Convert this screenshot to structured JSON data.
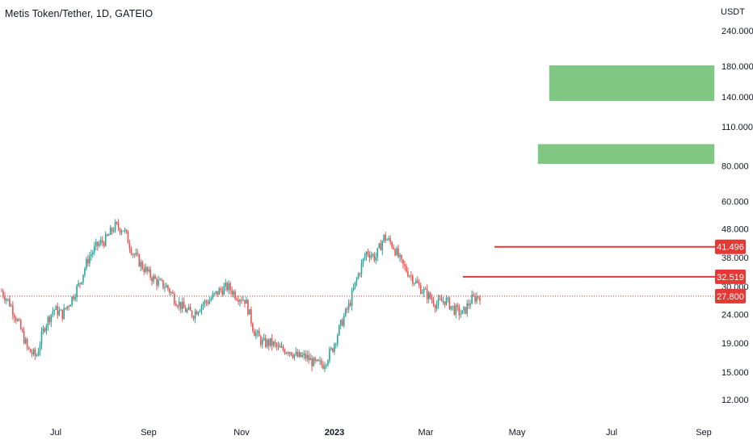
{
  "chart_data": {
    "type": "candlestick",
    "title": "Metis Token/Tether, 1D, GATEIO",
    "price_unit": "USDT",
    "y_scale": "log",
    "y_ticks": [
      "240.000",
      "180.000",
      "140.000",
      "110.000",
      "80.000",
      "60.000",
      "48.000",
      "38.000",
      "30.000",
      "24.000",
      "19.000",
      "15.000",
      "12.000"
    ],
    "x_ticks": [
      "Jul",
      "Sep",
      "Nov",
      "2023",
      "Mar",
      "May",
      "Jul",
      "Sep"
    ],
    "colors": {
      "up": "#26a69a",
      "down": "#ef5350",
      "level": "#e53935",
      "zone": "#81c784",
      "last": "#e53935"
    },
    "current_price": "27.800",
    "levels": [
      {
        "label": "41.496",
        "value": 41.496
      },
      {
        "label": "32.519",
        "value": 32.519
      }
    ],
    "target_zones": [
      {
        "low": 135,
        "high": 182
      },
      {
        "low": 81,
        "high": 96
      }
    ],
    "close_series": {
      "start": "Jun 2022",
      "approx_points": [
        29,
        26,
        22,
        18,
        17,
        22,
        25,
        24,
        27,
        31,
        38,
        42,
        44,
        49,
        48,
        40,
        36,
        33,
        31,
        30,
        27,
        25,
        24,
        26,
        27,
        29,
        30,
        28,
        27,
        21,
        19,
        19,
        18,
        18,
        17,
        17,
        16,
        16,
        18,
        22,
        26,
        33,
        40,
        38,
        45,
        42,
        36,
        33,
        30,
        28,
        26,
        27,
        25,
        24,
        27,
        28
      ]
    }
  }
}
